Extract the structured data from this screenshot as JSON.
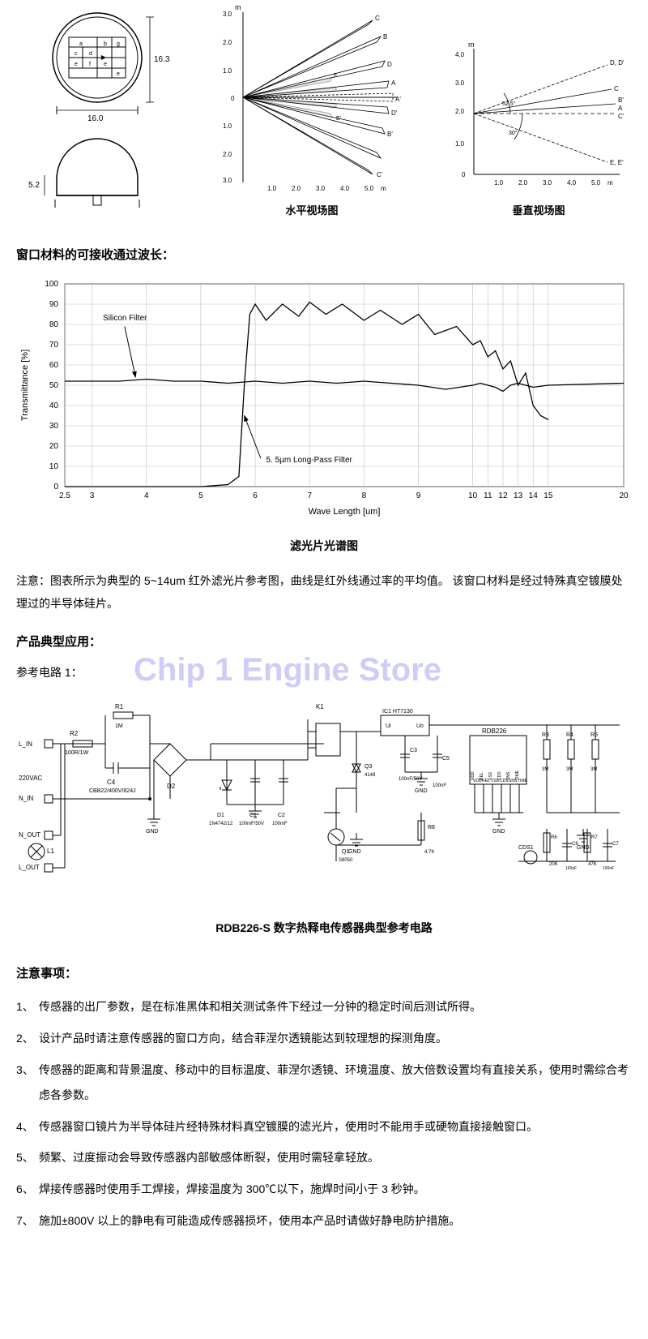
{
  "top_diagrams": {
    "package": {
      "width_dim": "16.0",
      "height_dim": "16.3",
      "dome_height": "5.2",
      "cell_labels": [
        "a",
        "b",
        "c",
        "d",
        "e",
        "f",
        "g"
      ]
    },
    "horizontal_fov": {
      "caption": "水平视场图",
      "axis_unit": "m",
      "y_top": "3.0",
      "y_vals": [
        "3.0",
        "2.0",
        "1.0",
        "0",
        "1.0",
        "2.0",
        "3.0"
      ],
      "x_vals": [
        "1.0",
        "2.0",
        "3.0",
        "4.0",
        "5.0"
      ],
      "beam_labels": [
        "C",
        "B",
        "A",
        "A'",
        "B'",
        "C'",
        "D",
        "D'",
        "E",
        "E'"
      ]
    },
    "vertical_fov": {
      "caption": "垂直视场图",
      "y_unit": "m",
      "y_vals": [
        "4.0",
        "3.0",
        "2.0",
        "1.0",
        "0"
      ],
      "x_vals": [
        "1.0",
        "2.0",
        "3.0",
        "4.0",
        "5.0"
      ],
      "x_unit": "m",
      "angle1": "52.5°",
      "angle2": "30°",
      "labels": [
        "D, D'",
        "C",
        "B'",
        "A",
        "C'",
        "E, E'"
      ]
    }
  },
  "section1_heading": "窗口材料的可接收通过波长：",
  "spectrum_chart": {
    "type": "line",
    "caption": "滤光片光谱图",
    "ylabel": "Transmittance [%]",
    "xlabel": "Wave Length [um]",
    "x_ticks": [
      "2.5",
      "3",
      "4",
      "5",
      "6",
      "7",
      "8",
      "9",
      "10",
      "11",
      "12",
      "13",
      "14",
      "15",
      "20"
    ],
    "y_ticks": [
      "0",
      "10",
      "20",
      "30",
      "40",
      "50",
      "60",
      "70",
      "80",
      "90",
      "100"
    ],
    "xlim": [
      2.5,
      20
    ],
    "ylim": [
      0,
      100
    ],
    "grid_color": "#bfbfbf",
    "line_color": "#000000",
    "background_color": "#ffffff",
    "annotations": {
      "silicon_filter": "Silicon Filter",
      "longpass_filter": "5. 5µm Long-Pass Filter"
    },
    "series_silicon": [
      [
        2.5,
        52
      ],
      [
        3,
        52
      ],
      [
        3.5,
        52
      ],
      [
        4,
        53
      ],
      [
        4.5,
        52
      ],
      [
        5,
        52
      ],
      [
        5.5,
        51
      ],
      [
        6,
        52
      ],
      [
        6.5,
        51
      ],
      [
        7,
        52
      ],
      [
        7.5,
        51
      ],
      [
        8,
        52
      ],
      [
        8.5,
        51
      ],
      [
        9,
        50
      ],
      [
        9.5,
        48
      ],
      [
        10,
        50
      ],
      [
        10.5,
        51
      ],
      [
        11,
        50
      ],
      [
        11.5,
        49
      ],
      [
        12,
        47
      ],
      [
        12.5,
        50
      ],
      [
        13,
        51
      ],
      [
        13.5,
        50
      ],
      [
        14,
        49
      ],
      [
        15,
        50
      ],
      [
        20,
        51
      ]
    ],
    "series_longpass": [
      [
        2.5,
        0
      ],
      [
        5,
        0
      ],
      [
        5.5,
        1
      ],
      [
        5.7,
        5
      ],
      [
        5.8,
        50
      ],
      [
        5.9,
        85
      ],
      [
        6,
        90
      ],
      [
        6.2,
        82
      ],
      [
        6.5,
        90
      ],
      [
        6.8,
        84
      ],
      [
        7,
        91
      ],
      [
        7.3,
        85
      ],
      [
        7.6,
        90
      ],
      [
        8,
        82
      ],
      [
        8.3,
        87
      ],
      [
        8.7,
        80
      ],
      [
        9,
        85
      ],
      [
        9.3,
        75
      ],
      [
        9.7,
        79
      ],
      [
        10,
        70
      ],
      [
        10.5,
        72
      ],
      [
        11,
        64
      ],
      [
        11.5,
        67
      ],
      [
        12,
        58
      ],
      [
        12.5,
        62
      ],
      [
        13,
        50
      ],
      [
        13.5,
        56
      ],
      [
        14,
        40
      ],
      [
        14.5,
        35
      ],
      [
        15,
        33
      ]
    ]
  },
  "note_text": "注意：图表所示为典型的 5~14um 红外滤光片参考图，曲线是红外线通过率的平均值。 该窗口材料是经过特殊真空镀膜处理过的半导体硅片。",
  "section2_heading": "产品典型应用：",
  "watermark_text": "Chip 1 Engine Store",
  "ref_circuit_label": "参考电路 1：",
  "circuit": {
    "caption": "RDB226-S 数字热释电传感器典型参考电路",
    "labels": {
      "L_IN": "L_IN",
      "N_IN": "N_IN",
      "N_OUT": "N_OUT",
      "L_OUT": "L_OUT",
      "220VAC": "220VAC",
      "L1": "L1",
      "R1": "R1\n1M",
      "R2": "R2\n100R/1W",
      "C4": "C4\nCBB22/400V/824J",
      "D2": "D2",
      "GND": "GND",
      "D1": "D1\n1N4742/12",
      "C1": "C1\n100mF/50V",
      "C2": "C2\n100mF",
      "K1": "K1",
      "Q3": "Q3\n4148",
      "Q1": "Q1\nS8050",
      "IC1": "IC1  HT7130",
      "Ui": "Ui",
      "Uo": "Uo",
      "C3": "C3\n100nF/50V",
      "C5": "C5\n100nF",
      "RDB226": "RDB226",
      "pins": [
        "VDD",
        "REL",
        "VSS",
        "CDS",
        "SNS",
        "TIME"
      ],
      "R3": "R3\n3M",
      "R4": "R4\n3M",
      "R5": "R5\n3M",
      "R6": "R6\n20K",
      "C6": "C6\n100nF",
      "R7": "R7\n47K",
      "C7": "C7\n100nF",
      "R8": "R8\n4.7K",
      "CDS1": "CDS1"
    }
  },
  "section3_heading": "注意事项：",
  "precautions": [
    "传感器的出厂参数，是在标准黑体和相关测试条件下经过一分钟的稳定时间后测试所得。",
    "设计产品时请注意传感器的窗口方向，结合菲涅尔透镜能达到较理想的探测角度。",
    "传感器的距离和背景温度、移动中的目标温度、菲涅尔透镜、环境温度、放大倍数设置均有直接关系，使用时需综合考虑各参数。",
    "传感器窗口镜片为半导体硅片经特殊材料真空镀膜的滤光片，使用时不能用手或硬物直接接触窗口。",
    "频繁、过度振动会导致传感器内部敏感体断裂，使用时需轻拿轻放。",
    "焊接传感器时使用手工焊接，焊接温度为 300℃以下，施焊时间小于 3 秒钟。",
    "施加±800V 以上的静电有可能造成传感器损坏，使用本产品时请做好静电防护措施。"
  ]
}
